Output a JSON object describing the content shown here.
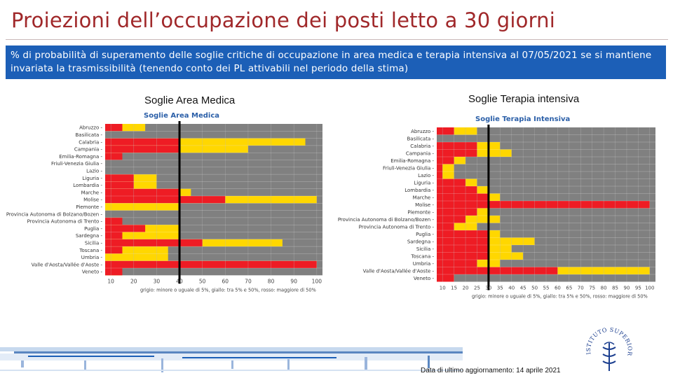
{
  "slide": {
    "title": "Proiezioni dell’occupazione dei posti letto a 30 giorni",
    "banner": "% di probabilità di superamento delle soglie critiche di occupazione in area medica e terapia intensiva al 07/05/2021 se si mantiene invariata la trasmissibilità (tenendo conto dei PL attivabili nel periodo della stima)",
    "update_note": "Data di ultimo aggiornamento: 14 aprile 2021",
    "logo_text": "ISTITUTO SUPERIORE DI SANITÀ"
  },
  "colors": {
    "red": "#ee1c24",
    "yellow": "#ffd700",
    "grey": "#808080",
    "marker": "#000000",
    "banner": "#1c5fb7",
    "title": "#a0282a"
  },
  "chart_data": [
    {
      "type": "heatmap",
      "panel_title": "Soglie Area Medica",
      "title": "Soglie Area Medica",
      "regions": [
        "Abruzzo",
        "Basilicata",
        "Calabria",
        "Campania",
        "Emilia-Romagna",
        "Friuli-Venezia Giulia",
        "Lazio",
        "Liguria",
        "Lombardia",
        "Marche",
        "Molise",
        "Piemonte",
        "Provincia Autonoma di Bolzano/Bozen",
        "Provincia Autonoma di Trento",
        "Puglia",
        "Sardegna",
        "Sicilia",
        "Toscana",
        "Umbria",
        "Valle d'Aosta/Vallée d'Aoste",
        "Veneto"
      ],
      "x_ticks": [
        10,
        20,
        30,
        40,
        50,
        60,
        70,
        80,
        90,
        100
      ],
      "xlim": [
        7.5,
        102.5
      ],
      "reference_line": 40,
      "legend_text": "grigio: minore o uguale di 5%, giallo: tra 5% e 50%, rosso: maggiore di 50%",
      "rows": [
        {
          "region": "Abruzzo",
          "red_to": 15,
          "yellow_to": 25
        },
        {
          "region": "Basilicata",
          "red_to": null,
          "yellow_to": null
        },
        {
          "region": "Calabria",
          "red_to": 40,
          "yellow_to": 95
        },
        {
          "region": "Campania",
          "red_to": 40,
          "yellow_to": 70
        },
        {
          "region": "Emilia-Romagna",
          "red_to": 15,
          "yellow_to": 15
        },
        {
          "region": "Friuli-Venezia Giulia",
          "red_to": null,
          "yellow_to": null
        },
        {
          "region": "Lazio",
          "red_to": null,
          "yellow_to": null
        },
        {
          "region": "Liguria",
          "red_to": 20,
          "yellow_to": 30
        },
        {
          "region": "Lombardia",
          "red_to": 20,
          "yellow_to": 30
        },
        {
          "region": "Marche",
          "red_to": 40,
          "yellow_to": 45
        },
        {
          "region": "Molise",
          "red_to": 60,
          "yellow_to": 100
        },
        {
          "region": "Piemonte",
          "red_to": null,
          "yellow_to": 40
        },
        {
          "region": "Provincia Autonoma di Bolzano/Bozen",
          "red_to": null,
          "yellow_to": null
        },
        {
          "region": "Provincia Autonoma di Trento",
          "red_to": 15,
          "yellow_to": 15
        },
        {
          "region": "Puglia",
          "red_to": 25,
          "yellow_to": 40
        },
        {
          "region": "Sardegna",
          "red_to": 15,
          "yellow_to": 40
        },
        {
          "region": "Sicilia",
          "red_to": 50,
          "yellow_to": 85
        },
        {
          "region": "Toscana",
          "red_to": 15,
          "yellow_to": 35
        },
        {
          "region": "Umbria",
          "red_to": null,
          "yellow_to": 35
        },
        {
          "region": "Valle d'Aosta/Vallée d'Aoste",
          "red_to": 100,
          "yellow_to": 100
        },
        {
          "region": "Veneto",
          "red_to": 15,
          "yellow_to": 15
        }
      ]
    },
    {
      "type": "heatmap",
      "panel_title": "Soglie Terapia intensiva",
      "title": "Soglie Terapia Intensiva",
      "regions": [
        "Abruzzo",
        "Basilicata",
        "Calabria",
        "Campania",
        "Emilia-Romagna",
        "Friuli-Venezia Giulia",
        "Lazio",
        "Liguria",
        "Lombardia",
        "Marche",
        "Molise",
        "Piemonte",
        "Provincia Autonoma di Bolzano/Bozen",
        "Provincia Autonoma di Trento",
        "Puglia",
        "Sardegna",
        "Sicilia",
        "Toscana",
        "Umbria",
        "Valle d'Aosta/Vallée d'Aoste",
        "Veneto"
      ],
      "x_ticks": [
        10,
        15,
        20,
        25,
        30,
        35,
        40,
        45,
        50,
        55,
        60,
        65,
        70,
        75,
        80,
        85,
        90,
        95,
        100
      ],
      "xlim": [
        7.5,
        102.5
      ],
      "reference_line": 30,
      "legend_text": "grigio: minore o uguale di 5%, giallo: tra 5% e 50%, rosso: maggiore di 50%",
      "rows": [
        {
          "region": "Abruzzo",
          "red_to": 15,
          "yellow_to": 25
        },
        {
          "region": "Basilicata",
          "red_to": null,
          "yellow_to": null
        },
        {
          "region": "Calabria",
          "red_to": 25,
          "yellow_to": 35
        },
        {
          "region": "Campania",
          "red_to": 25,
          "yellow_to": 40
        },
        {
          "region": "Emilia-Romagna",
          "red_to": 15,
          "yellow_to": 20
        },
        {
          "region": "Friuli-Venezia Giulia",
          "red_to": 10,
          "yellow_to": 15
        },
        {
          "region": "Lazio",
          "red_to": 10,
          "yellow_to": 15
        },
        {
          "region": "Liguria",
          "red_to": 20,
          "yellow_to": 25
        },
        {
          "region": "Lombardia",
          "red_to": 25,
          "yellow_to": 30
        },
        {
          "region": "Marche",
          "red_to": 30,
          "yellow_to": 35
        },
        {
          "region": "Molise",
          "red_to": 100,
          "yellow_to": 100
        },
        {
          "region": "Piemonte",
          "red_to": 25,
          "yellow_to": 30
        },
        {
          "region": "Provincia Autonoma di Bolzano/Bozen",
          "red_to": 20,
          "yellow_to": 35
        },
        {
          "region": "Provincia Autonoma di Trento",
          "red_to": 15,
          "yellow_to": 25
        },
        {
          "region": "Puglia",
          "red_to": 30,
          "yellow_to": 35
        },
        {
          "region": "Sardegna",
          "red_to": 30,
          "yellow_to": 50
        },
        {
          "region": "Sicilia",
          "red_to": 30,
          "yellow_to": 40
        },
        {
          "region": "Toscana",
          "red_to": 30,
          "yellow_to": 45
        },
        {
          "region": "Umbria",
          "red_to": 25,
          "yellow_to": 35
        },
        {
          "region": "Valle d'Aosta/Vallée d'Aoste",
          "red_to": 60,
          "yellow_to": 100
        },
        {
          "region": "Veneto",
          "red_to": 15,
          "yellow_to": 15
        }
      ]
    }
  ]
}
